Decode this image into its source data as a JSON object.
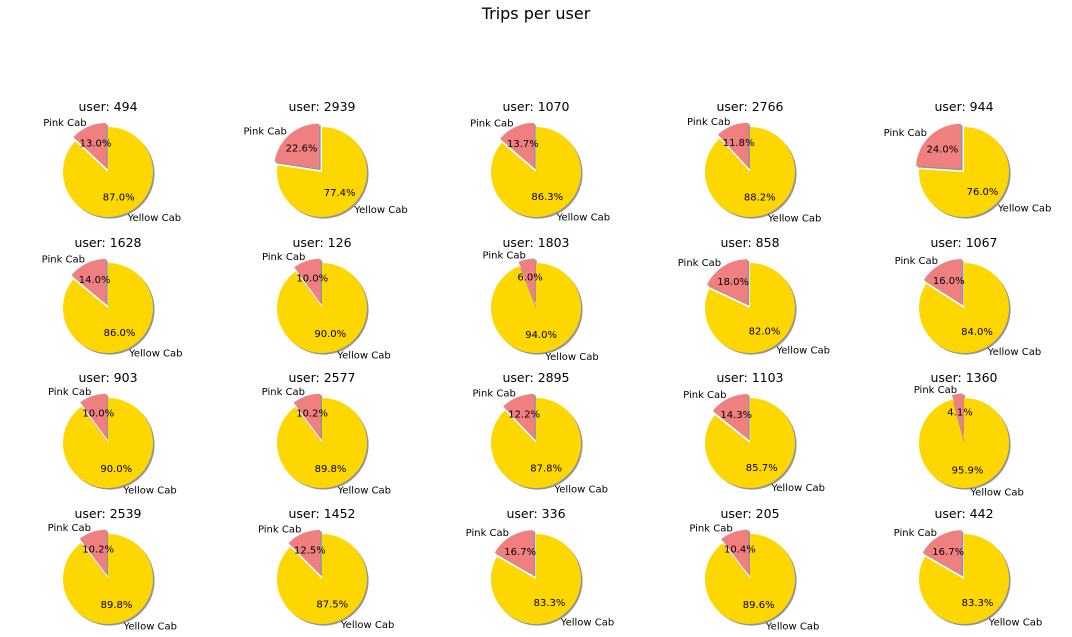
{
  "figure": {
    "title": "Trips per user"
  },
  "colors": {
    "Pink Cab": "#f08080",
    "Yellow Cab": "#ffd700",
    "shadow": "#8a8a8a"
  },
  "chart_data": [
    {
      "type": "pie",
      "title": "user: 494",
      "categories": [
        "Pink Cab",
        "Yellow Cab"
      ],
      "values": [
        13.0,
        87.0
      ],
      "labels": [
        "13.0%",
        "87.0%"
      ],
      "explode": [
        0.1,
        0
      ]
    },
    {
      "type": "pie",
      "title": "user: 2939",
      "categories": [
        "Pink Cab",
        "Yellow Cab"
      ],
      "values": [
        22.6,
        77.4
      ],
      "labels": [
        "22.6%",
        "77.4%"
      ],
      "explode": [
        0.1,
        0
      ]
    },
    {
      "type": "pie",
      "title": "user: 1070",
      "categories": [
        "Pink Cab",
        "Yellow Cab"
      ],
      "values": [
        13.7,
        86.3
      ],
      "labels": [
        "13.7%",
        "86.3%"
      ],
      "explode": [
        0.1,
        0
      ]
    },
    {
      "type": "pie",
      "title": "user: 2766",
      "categories": [
        "Pink Cab",
        "Yellow Cab"
      ],
      "values": [
        11.8,
        88.2
      ],
      "labels": [
        "11.8%",
        "88.2%"
      ],
      "explode": [
        0.1,
        0
      ]
    },
    {
      "type": "pie",
      "title": "user: 944",
      "categories": [
        "Pink Cab",
        "Yellow Cab"
      ],
      "values": [
        24.0,
        76.0
      ],
      "labels": [
        "24.0%",
        "76.0%"
      ],
      "explode": [
        0.1,
        0
      ]
    },
    {
      "type": "pie",
      "title": "user: 1628",
      "categories": [
        "Pink Cab",
        "Yellow Cab"
      ],
      "values": [
        14.0,
        86.0
      ],
      "labels": [
        "14.0%",
        "86.0%"
      ],
      "explode": [
        0.1,
        0
      ]
    },
    {
      "type": "pie",
      "title": "user: 126",
      "categories": [
        "Pink Cab",
        "Yellow Cab"
      ],
      "values": [
        10.0,
        90.0
      ],
      "labels": [
        "10.0%",
        "90.0%"
      ],
      "explode": [
        0.1,
        0
      ]
    },
    {
      "type": "pie",
      "title": "user: 1803",
      "categories": [
        "Pink Cab",
        "Yellow Cab"
      ],
      "values": [
        6.0,
        94.0
      ],
      "labels": [
        "6.0%",
        "94.0%"
      ],
      "explode": [
        0.1,
        0
      ]
    },
    {
      "type": "pie",
      "title": "user: 858",
      "categories": [
        "Pink Cab",
        "Yellow Cab"
      ],
      "values": [
        18.0,
        82.0
      ],
      "labels": [
        "18.0%",
        "82.0%"
      ],
      "explode": [
        0.1,
        0
      ]
    },
    {
      "type": "pie",
      "title": "user: 1067",
      "categories": [
        "Pink Cab",
        "Yellow Cab"
      ],
      "values": [
        16.0,
        84.0
      ],
      "labels": [
        "16.0%",
        "84.0%"
      ],
      "explode": [
        0.1,
        0
      ]
    },
    {
      "type": "pie",
      "title": "user: 903",
      "categories": [
        "Pink Cab",
        "Yellow Cab"
      ],
      "values": [
        10.0,
        90.0
      ],
      "labels": [
        "10.0%",
        "90.0%"
      ],
      "explode": [
        0.1,
        0
      ]
    },
    {
      "type": "pie",
      "title": "user: 2577",
      "categories": [
        "Pink Cab",
        "Yellow Cab"
      ],
      "values": [
        10.2,
        89.8
      ],
      "labels": [
        "10.2%",
        "89.8%"
      ],
      "explode": [
        0.1,
        0
      ]
    },
    {
      "type": "pie",
      "title": "user: 2895",
      "categories": [
        "Pink Cab",
        "Yellow Cab"
      ],
      "values": [
        12.2,
        87.8
      ],
      "labels": [
        "12.2%",
        "87.8%"
      ],
      "explode": [
        0.1,
        0
      ]
    },
    {
      "type": "pie",
      "title": "user: 1103",
      "categories": [
        "Pink Cab",
        "Yellow Cab"
      ],
      "values": [
        14.3,
        85.7
      ],
      "labels": [
        "14.3%",
        "85.7%"
      ],
      "explode": [
        0.1,
        0
      ]
    },
    {
      "type": "pie",
      "title": "user: 1360",
      "categories": [
        "Pink Cab",
        "Yellow Cab"
      ],
      "values": [
        4.1,
        95.9
      ],
      "labels": [
        "4.1%",
        "95.9%"
      ],
      "explode": [
        0.1,
        0
      ]
    },
    {
      "type": "pie",
      "title": "user: 2539",
      "categories": [
        "Pink Cab",
        "Yellow Cab"
      ],
      "values": [
        10.2,
        89.8
      ],
      "labels": [
        "10.2%",
        "89.8%"
      ],
      "explode": [
        0.1,
        0
      ]
    },
    {
      "type": "pie",
      "title": "user: 1452",
      "categories": [
        "Pink Cab",
        "Yellow Cab"
      ],
      "values": [
        12.5,
        87.5
      ],
      "labels": [
        "12.5%",
        "87.5%"
      ],
      "explode": [
        0.1,
        0
      ]
    },
    {
      "type": "pie",
      "title": "user: 336",
      "categories": [
        "Pink Cab",
        "Yellow Cab"
      ],
      "values": [
        16.7,
        83.3
      ],
      "labels": [
        "16.7%",
        "83.3%"
      ],
      "explode": [
        0.1,
        0
      ]
    },
    {
      "type": "pie",
      "title": "user: 205",
      "categories": [
        "Pink Cab",
        "Yellow Cab"
      ],
      "values": [
        10.4,
        89.6
      ],
      "labels": [
        "10.4%",
        "89.6%"
      ],
      "explode": [
        0.1,
        0
      ]
    },
    {
      "type": "pie",
      "title": "user: 442",
      "categories": [
        "Pink Cab",
        "Yellow Cab"
      ],
      "values": [
        16.7,
        83.3
      ],
      "labels": [
        "16.7%",
        "83.3%"
      ],
      "explode": [
        0.1,
        0
      ]
    }
  ]
}
